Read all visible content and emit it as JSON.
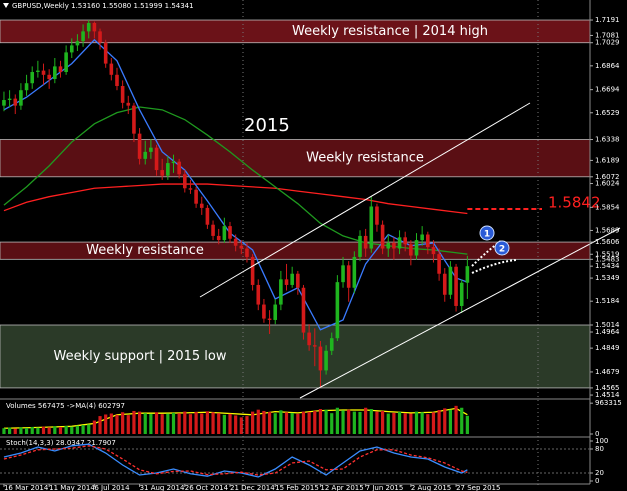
{
  "chart_data": {
    "type": "candlestick",
    "header": "GBPUSD,Weekly 1.53160 1.55080 1.51999 1.54341",
    "up_color": "#1fb51f",
    "down_color": "#d41a1a",
    "xlim": [
      -0.7,
      103.7
    ],
    "ylim": [
      1.4493,
      1.7334
    ],
    "yticks": [
      1.7191,
      1.7081,
      1.7029,
      1.6864,
      1.6694,
      1.6529,
      1.6338,
      1.6189,
      1.6072,
      1.6024,
      1.5854,
      1.5689,
      1.5606,
      1.5519,
      1.5483,
      1.5434,
      1.5349,
      1.5184,
      1.5014,
      1.4964,
      1.4849,
      1.4679,
      1.4565,
      1.4514
    ],
    "xticks": [
      {
        "value": 0,
        "label": "16 Mar 2014"
      },
      {
        "value": 8,
        "label": "11 May 2014"
      },
      {
        "value": 16,
        "label": "6 Jul 2014"
      },
      {
        "value": 24,
        "label": "31 Aug 2014"
      },
      {
        "value": 32,
        "label": "26 Oct 2014"
      },
      {
        "value": 40,
        "label": "21 Dec 2014"
      },
      {
        "value": 48,
        "label": "15 Feb 2015"
      },
      {
        "value": 56,
        "label": "12 Apr 2015"
      },
      {
        "value": 64,
        "label": "7 Jun 2015"
      },
      {
        "value": 72,
        "label": "2 Aug 2015"
      },
      {
        "value": 80,
        "label": "27 Sep 2015"
      }
    ],
    "zones": [
      {
        "label": "Weekly resistance | 2014 high",
        "range": [
          1.7029,
          1.7191
        ],
        "color": "#6b1218"
      },
      {
        "label": "Weekly resistance",
        "range": [
          1.6072,
          1.6338
        ],
        "color": "#5a0f14"
      },
      {
        "label": "Weekly resistance",
        "range": [
          1.5483,
          1.5606
        ],
        "color": "#5a0f14"
      },
      {
        "label": "Weekly support | 2015 low",
        "range": [
          1.4565,
          1.5014
        ],
        "color": "#2b3a28"
      }
    ],
    "year_label": "2015",
    "target": 1.5842,
    "markers": [
      "1",
      "2"
    ],
    "candles": [
      [
        1.658,
        1.668,
        1.654,
        1.662
      ],
      [
        1.662,
        1.669,
        1.657,
        1.663
      ],
      [
        1.663,
        1.666,
        1.652,
        1.658
      ],
      [
        1.658,
        1.674,
        1.655,
        1.669
      ],
      [
        1.669,
        1.68,
        1.665,
        1.674
      ],
      [
        1.674,
        1.686,
        1.67,
        1.682
      ],
      [
        1.682,
        1.69,
        1.678,
        1.683
      ],
      [
        1.683,
        1.688,
        1.673,
        1.68
      ],
      [
        1.68,
        1.684,
        1.67,
        1.677
      ],
      [
        1.677,
        1.692,
        1.674,
        1.686
      ],
      [
        1.686,
        1.69,
        1.678,
        1.682
      ],
      [
        1.682,
        1.701,
        1.68,
        1.696
      ],
      [
        1.696,
        1.706,
        1.692,
        1.701
      ],
      [
        1.701,
        1.709,
        1.697,
        1.704
      ],
      [
        1.704,
        1.716,
        1.7,
        1.711
      ],
      [
        1.711,
        1.7191,
        1.706,
        1.717
      ],
      [
        1.717,
        1.718,
        1.706,
        1.711
      ],
      [
        1.711,
        1.713,
        1.698,
        1.703
      ],
      [
        1.703,
        1.705,
        1.685,
        1.688
      ],
      [
        1.688,
        1.692,
        1.676,
        1.68
      ],
      [
        1.68,
        1.685,
        1.669,
        1.672
      ],
      [
        1.672,
        1.676,
        1.656,
        1.66
      ],
      [
        1.66,
        1.665,
        1.652,
        1.658
      ],
      [
        1.658,
        1.66,
        1.632,
        1.638
      ],
      [
        1.638,
        1.642,
        1.616,
        1.62
      ],
      [
        1.62,
        1.633,
        1.616,
        1.625
      ],
      [
        1.625,
        1.634,
        1.62,
        1.628
      ],
      [
        1.628,
        1.63,
        1.608,
        1.612
      ],
      [
        1.612,
        1.62,
        1.605,
        1.608
      ],
      [
        1.608,
        1.622,
        1.605,
        1.617
      ],
      [
        1.617,
        1.623,
        1.61,
        1.618
      ],
      [
        1.618,
        1.62,
        1.606,
        1.609
      ],
      [
        1.609,
        1.612,
        1.596,
        1.599
      ],
      [
        1.599,
        1.605,
        1.595,
        1.598
      ],
      [
        1.598,
        1.6,
        1.585,
        1.588
      ],
      [
        1.588,
        1.593,
        1.58,
        1.585
      ],
      [
        1.585,
        1.587,
        1.57,
        1.573
      ],
      [
        1.573,
        1.576,
        1.562,
        1.565
      ],
      [
        1.565,
        1.57,
        1.559,
        1.562
      ],
      [
        1.562,
        1.578,
        1.56,
        1.572
      ],
      [
        1.572,
        1.575,
        1.56,
        1.563
      ],
      [
        1.563,
        1.566,
        1.554,
        1.558
      ],
      [
        1.558,
        1.562,
        1.552,
        1.556
      ],
      [
        1.556,
        1.56,
        1.546,
        1.55
      ],
      [
        1.55,
        1.552,
        1.526,
        1.53
      ],
      [
        1.53,
        1.534,
        1.512,
        1.516
      ],
      [
        1.516,
        1.52,
        1.503,
        1.506
      ],
      [
        1.506,
        1.512,
        1.495,
        1.505
      ],
      [
        1.505,
        1.52,
        1.502,
        1.516
      ],
      [
        1.516,
        1.54,
        1.512,
        1.534
      ],
      [
        1.534,
        1.545,
        1.526,
        1.53
      ],
      [
        1.53,
        1.543,
        1.528,
        1.538
      ],
      [
        1.538,
        1.54,
        1.523,
        1.528
      ],
      [
        1.528,
        1.53,
        1.491,
        1.496
      ],
      [
        1.496,
        1.502,
        1.483,
        1.487
      ],
      [
        1.487,
        1.499,
        1.472,
        1.486
      ],
      [
        1.486,
        1.49,
        1.4565,
        1.469
      ],
      [
        1.469,
        1.487,
        1.466,
        1.483
      ],
      [
        1.483,
        1.496,
        1.48,
        1.492
      ],
      [
        1.492,
        1.537,
        1.49,
        1.532
      ],
      [
        1.532,
        1.55,
        1.528,
        1.544
      ],
      [
        1.544,
        1.547,
        1.518,
        1.528
      ],
      [
        1.528,
        1.554,
        1.524,
        1.55
      ],
      [
        1.55,
        1.569,
        1.547,
        1.565
      ],
      [
        1.565,
        1.57,
        1.55,
        1.556
      ],
      [
        1.556,
        1.593,
        1.553,
        1.586
      ],
      [
        1.586,
        1.588,
        1.568,
        1.573
      ],
      [
        1.573,
        1.576,
        1.552,
        1.556
      ],
      [
        1.556,
        1.566,
        1.55,
        1.56
      ],
      [
        1.56,
        1.564,
        1.548,
        1.556
      ],
      [
        1.556,
        1.569,
        1.552,
        1.564
      ],
      [
        1.564,
        1.568,
        1.554,
        1.559
      ],
      [
        1.559,
        1.562,
        1.544,
        1.551
      ],
      [
        1.551,
        1.567,
        1.548,
        1.562
      ],
      [
        1.562,
        1.572,
        1.558,
        1.566
      ],
      [
        1.566,
        1.568,
        1.552,
        1.557
      ],
      [
        1.557,
        1.562,
        1.546,
        1.552
      ],
      [
        1.552,
        1.556,
        1.533,
        1.538
      ],
      [
        1.538,
        1.542,
        1.518,
        1.523
      ],
      [
        1.523,
        1.547,
        1.52,
        1.543
      ],
      [
        1.543,
        1.545,
        1.511,
        1.515
      ],
      [
        1.515,
        1.534,
        1.51,
        1.5316
      ],
      [
        1.5316,
        1.5508,
        1.52,
        1.5434
      ]
    ],
    "ma": [
      {
        "color": "#ff2020",
        "x": [
          0,
          4,
          8,
          12,
          16,
          20,
          24,
          28,
          32,
          36,
          40,
          44,
          48,
          52,
          56,
          60,
          64,
          68,
          72,
          76,
          80,
          82
        ],
        "values": [
          1.583,
          1.589,
          1.593,
          1.596,
          1.599,
          1.6,
          1.601,
          1.602,
          1.602,
          1.602,
          1.601,
          1.6,
          1.599,
          1.597,
          1.595,
          1.593,
          1.591,
          1.588,
          1.586,
          1.584,
          1.582,
          1.581
        ]
      },
      {
        "color": "#1f9a1f",
        "x": [
          0,
          4,
          8,
          12,
          16,
          20,
          24,
          28,
          32,
          36,
          40,
          44,
          48,
          52,
          56,
          60,
          64,
          68,
          72,
          76,
          80,
          82
        ],
        "values": [
          1.587,
          1.6,
          1.615,
          1.632,
          1.645,
          1.653,
          1.657,
          1.655,
          1.648,
          1.637,
          1.625,
          1.612,
          1.6,
          1.588,
          1.574,
          1.565,
          1.56,
          1.558,
          1.556,
          1.555,
          1.553,
          1.552
        ]
      },
      {
        "color": "#3a7bff",
        "x": [
          0,
          4,
          8,
          12,
          16,
          20,
          24,
          28,
          32,
          36,
          40,
          44,
          48,
          52,
          56,
          60,
          64,
          68,
          72,
          76,
          80,
          82
        ],
        "values": [
          1.655,
          1.664,
          1.676,
          1.688,
          1.705,
          1.69,
          1.655,
          1.625,
          1.612,
          1.59,
          1.567,
          1.555,
          1.52,
          1.528,
          1.498,
          1.505,
          1.545,
          1.566,
          1.558,
          1.56,
          1.535,
          1.532
        ]
      }
    ],
    "volume": {
      "title": "Volumes 567475 ->MA(4) 602797",
      "ylim": [
        0,
        1000000
      ],
      "yticks": [
        963315,
        0
      ],
      "values": [
        180000,
        200000,
        170000,
        210000,
        190000,
        220000,
        200000,
        230000,
        210000,
        240000,
        220000,
        250000,
        230000,
        260000,
        280000,
        300000,
        420000,
        560000,
        610000,
        640000,
        600000,
        680000,
        590000,
        720000,
        700000,
        650000,
        630000,
        680000,
        620000,
        640000,
        660000,
        650000,
        700000,
        620000,
        690000,
        640000,
        710000,
        680000,
        650000,
        600000,
        630000,
        580000,
        520000,
        560000,
        700000,
        760000,
        720000,
        690000,
        650000,
        740000,
        680000,
        660000,
        630000,
        700000,
        690000,
        720000,
        780000,
        760000,
        650000,
        820000,
        740000,
        760000,
        700000,
        690000,
        820000,
        780000,
        700000,
        720000,
        640000,
        660000,
        690000,
        650000,
        640000,
        700000,
        680000,
        620000,
        680000,
        750000,
        800000,
        760000,
        880000,
        820000,
        567475
      ],
      "ma": {
        "color": "#ffff00",
        "x": [
          0,
          4,
          8,
          12,
          16,
          20,
          24,
          28,
          32,
          36,
          40,
          44,
          48,
          52,
          56,
          60,
          64,
          68,
          72,
          76,
          80,
          82
        ],
        "values": [
          180000,
          195000,
          215000,
          240000,
          330000,
          600000,
          650000,
          650000,
          660000,
          680000,
          640000,
          600000,
          700000,
          660000,
          730000,
          750000,
          750000,
          700000,
          660000,
          680000,
          800000,
          602797
        ]
      }
    },
    "stochastic": {
      "title": "Stoch(14,3,3) 28.0347 21.7907",
      "ylim": [
        0,
        100
      ],
      "yticks": [
        100,
        80,
        20,
        0
      ],
      "main": {
        "color": "#3a8dff",
        "x": [
          0,
          3,
          6,
          9,
          12,
          15,
          18,
          21,
          24,
          27,
          30,
          33,
          36,
          39,
          42,
          45,
          48,
          51,
          54,
          57,
          60,
          63,
          66,
          69,
          72,
          75,
          78,
          81,
          82
        ],
        "values": [
          60,
          70,
          85,
          75,
          88,
          92,
          70,
          40,
          15,
          20,
          30,
          18,
          12,
          25,
          20,
          10,
          30,
          60,
          40,
          15,
          45,
          75,
          85,
          70,
          60,
          55,
          35,
          20,
          28.0347
        ]
      },
      "signal": {
        "color": "#ff3030",
        "x": [
          0,
          3,
          6,
          9,
          12,
          15,
          18,
          21,
          24,
          27,
          30,
          33,
          36,
          39,
          42,
          45,
          48,
          51,
          54,
          57,
          60,
          63,
          66,
          69,
          72,
          75,
          78,
          81,
          82
        ],
        "values": [
          55,
          65,
          78,
          80,
          82,
          88,
          80,
          55,
          28,
          18,
          24,
          25,
          16,
          18,
          22,
          15,
          20,
          45,
          50,
          28,
          30,
          60,
          78,
          78,
          65,
          58,
          45,
          25,
          21.7907
        ]
      }
    }
  }
}
